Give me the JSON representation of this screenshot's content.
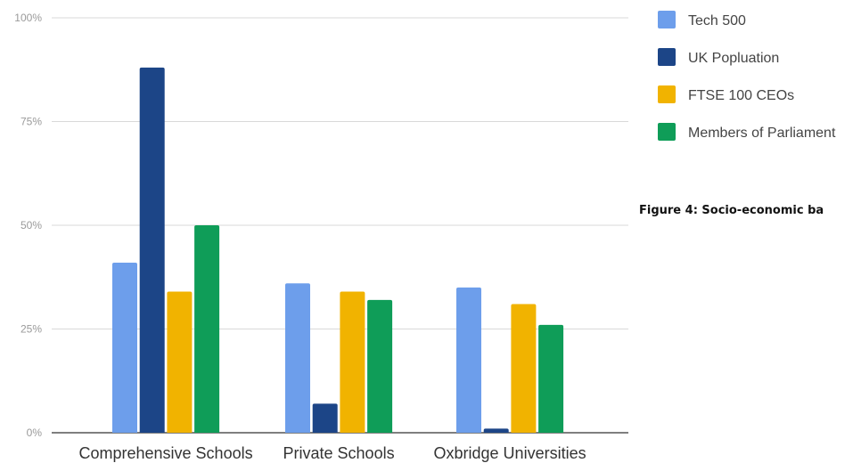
{
  "chart_data": {
    "type": "bar",
    "title": "",
    "caption": "Figure 4: Socio-economic ba",
    "xlabel": "",
    "ylabel": "",
    "categories": [
      "Comprehensive Schools",
      "Private Schools",
      "Oxbridge Universities"
    ],
    "series": [
      {
        "name": "Tech 500",
        "values": [
          41,
          36,
          35
        ],
        "color": "#6d9eeb"
      },
      {
        "name": "UK Popluation",
        "values": [
          88,
          7,
          1
        ],
        "color": "#1c4587"
      },
      {
        "name": "FTSE 100 CEOs",
        "values": [
          34,
          34,
          31
        ],
        "color": "#f1b300"
      },
      {
        "name": "Members of Parliament",
        "values": [
          50,
          32,
          26
        ],
        "color": "#0f9d58"
      }
    ],
    "ylim": [
      0,
      100
    ],
    "yticks": [
      0,
      25,
      50,
      75,
      100
    ],
    "ytick_labels": [
      "0%",
      "25%",
      "50%",
      "75%",
      "100%"
    ],
    "grid": true,
    "legend_position": "right"
  }
}
